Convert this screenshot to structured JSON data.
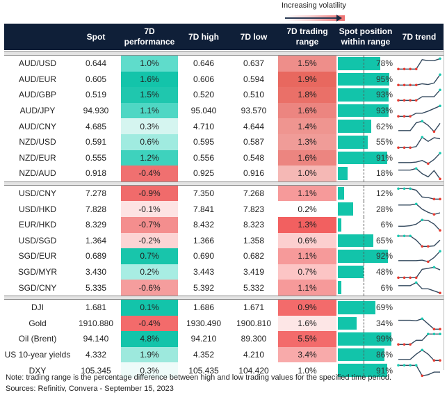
{
  "legend": {
    "label": "Increasing volatility"
  },
  "columns": [
    "",
    "Spot",
    "7D performance",
    "7D high",
    "7D low",
    "7D trading range",
    "Spot position within range",
    "7D trend"
  ],
  "chart_data": {
    "type": "table",
    "groups": [
      {
        "rows": [
          {
            "name": "AUD/USD",
            "spot": "0.644",
            "perf": "1.0%",
            "perf_color": "#5fdccb",
            "high": "0.646",
            "low": "0.637",
            "range": "1.5%",
            "range_color": "#ee8e8a",
            "position": 78,
            "trend": [
              0,
              0,
              0,
              0,
              0.9,
              0.8,
              0.8,
              1
            ]
          },
          {
            "name": "AUD/EUR",
            "spot": "0.605",
            "perf": "1.6%",
            "perf_color": "#13c4aa",
            "high": "0.606",
            "low": "0.594",
            "range": "1.9%",
            "range_color": "#e8685f",
            "position": 95,
            "trend": [
              0,
              0,
              0,
              0,
              0.12,
              0.05,
              0.2,
              1
            ]
          },
          {
            "name": "AUD/GBP",
            "spot": "0.519",
            "perf": "1.5%",
            "perf_color": "#1fc7ae",
            "high": "0.520",
            "low": "0.510",
            "range": "1.8%",
            "range_color": "#ea7068",
            "position": 93,
            "trend": [
              0,
              0,
              0,
              0,
              0.35,
              0.35,
              0.35,
              1
            ]
          },
          {
            "name": "AUD/JPY",
            "spot": "94.930",
            "perf": "1.1%",
            "perf_color": "#4fd7c4",
            "high": "95.040",
            "low": "93.570",
            "range": "1.6%",
            "range_color": "#ec8580",
            "position": 93,
            "trend": [
              0,
              0,
              0,
              0.3,
              0.3,
              0.5,
              0.75,
              1
            ]
          },
          {
            "name": "AUD/CNY",
            "spot": "4.685",
            "perf": "0.3%",
            "perf_color": "#d5f5f0",
            "high": "4.710",
            "low": "4.644",
            "range": "1.4%",
            "range_color": "#ef9590",
            "position": 62,
            "trend": [
              0.1,
              0.1,
              0.1,
              0.85,
              1,
              0.6,
              0,
              0.8
            ]
          },
          {
            "name": "NZD/USD",
            "spot": "0.591",
            "perf": "0.6%",
            "perf_color": "#a0ebe0",
            "high": "0.595",
            "low": "0.587",
            "range": "1.3%",
            "range_color": "#f09c98",
            "position": 55,
            "trend": [
              0,
              0,
              0,
              0.1,
              1,
              0.6,
              0.95,
              0.85
            ]
          },
          {
            "name": "NZD/EUR",
            "spot": "0.555",
            "perf": "1.2%",
            "perf_color": "#3ed2bd",
            "high": "0.556",
            "low": "0.548",
            "range": "1.6%",
            "range_color": "#ec8580",
            "position": 91,
            "trend": [
              0.1,
              0.1,
              0.1,
              0.15,
              0.3,
              0,
              0.4,
              1
            ]
          },
          {
            "name": "NZD/AUD",
            "spot": "0.918",
            "perf": "-0.4%",
            "perf_color": "#f07070",
            "high": "0.925",
            "low": "0.916",
            "range": "1.0%",
            "range_color": "#f5b8b5",
            "position": 18,
            "trend": [
              0.85,
              0.85,
              0.85,
              1,
              0.5,
              0.2,
              0.8,
              0
            ]
          }
        ]
      },
      {
        "rows": [
          {
            "name": "USD/CNY",
            "spot": "7.278",
            "perf": "-0.9%",
            "perf_color": "#f06b6b",
            "high": "7.350",
            "low": "7.268",
            "range": "1.1%",
            "range_color": "#f69a9a",
            "position": 12,
            "trend": [
              1,
              1,
              1,
              0.85,
              0.2,
              0.15,
              0,
              0
            ]
          },
          {
            "name": "USD/HKD",
            "spot": "7.828",
            "perf": "-0.1%",
            "perf_color": "#fde3e3",
            "high": "7.841",
            "low": "7.823",
            "range": "0.2%",
            "range_color": "#ffffff",
            "position": 28,
            "trend": [
              0.9,
              0.9,
              0.9,
              1,
              0.5,
              0.2,
              0,
              0.15
            ]
          },
          {
            "name": "EUR/HKD",
            "spot": "8.329",
            "perf": "-0.7%",
            "perf_color": "#f48e8e",
            "high": "8.432",
            "low": "8.323",
            "range": "1.3%",
            "range_color": "#f26060",
            "position": 6,
            "trend": [
              0.4,
              0.4,
              0.45,
              0.6,
              1,
              0.95,
              0.6,
              0
            ]
          },
          {
            "name": "USD/SGD",
            "spot": "1.364",
            "perf": "-0.2%",
            "perf_color": "#fcd4d4",
            "high": "1.366",
            "low": "1.358",
            "range": "0.6%",
            "range_color": "#fccfcf",
            "position": 65,
            "trend": [
              1,
              1,
              1,
              0.6,
              0,
              0,
              0.05,
              0.6
            ]
          },
          {
            "name": "SGD/EUR",
            "spot": "0.689",
            "perf": "0.7%",
            "perf_color": "#18c5ab",
            "high": "0.690",
            "low": "0.682",
            "range": "1.1%",
            "range_color": "#f69a9a",
            "position": 92,
            "trend": [
              0.1,
              0.1,
              0.1,
              0.1,
              0.15,
              0,
              0.4,
              1
            ]
          },
          {
            "name": "SGD/MYR",
            "spot": "3.430",
            "perf": "0.2%",
            "perf_color": "#a8ede3",
            "high": "3.443",
            "low": "3.419",
            "range": "0.7%",
            "range_color": "#fcc5c5",
            "position": 48,
            "trend": [
              0,
              0,
              0,
              0,
              0.8,
              0.9,
              1,
              0.75
            ]
          },
          {
            "name": "SGD/CNY",
            "spot": "5.335",
            "perf": "-0.6%",
            "perf_color": "#f59d9d",
            "high": "5.392",
            "low": "5.332",
            "range": "1.1%",
            "range_color": "#f69a9a",
            "position": 6,
            "trend": [
              0.7,
              0.7,
              0.7,
              1,
              0.4,
              0.4,
              0.2,
              0
            ]
          }
        ]
      },
      {
        "rows": [
          {
            "name": "DJI",
            "spot": "1.681",
            "perf": "0.1%",
            "perf_color": "#13c4aa",
            "high": "1.686",
            "low": "1.671",
            "range": "0.9%",
            "range_color": "#f36b6b",
            "position": 69,
            "trend": []
          },
          {
            "name": "Gold",
            "spot": "1910.880",
            "perf": "-0.4%",
            "perf_color": "#f36b6b",
            "high": "1930.490",
            "low": "1900.810",
            "range": "1.6%",
            "range_color": "#fde6e6",
            "position": 34,
            "trend": [
              0.85,
              0.85,
              0.85,
              0.8,
              1,
              0.5,
              0,
              0
            ]
          },
          {
            "name": "Oil (Brent)",
            "spot": "94.140",
            "perf": "4.8%",
            "perf_color": "#13c4aa",
            "high": "94.210",
            "low": "89.300",
            "range": "5.5%",
            "range_color": "#f36b6b",
            "position": 99,
            "trend": [
              0,
              0,
              0,
              0.4,
              0.4,
              1,
              1,
              1
            ]
          },
          {
            "name": "US 10-year yields",
            "spot": "4.332",
            "perf": "1.9%",
            "perf_color": "#9de9dd",
            "high": "4.352",
            "low": "4.210",
            "range": "3.4%",
            "range_color": "#f8aaaa",
            "position": 86,
            "trend": [
              0.1,
              0.1,
              0.1,
              0.6,
              1,
              0.6,
              0,
              0
            ]
          },
          {
            "name": "DXY",
            "spot": "105.345",
            "perf": "0.3%",
            "perf_color": "#eefbf9",
            "high": "105.435",
            "low": "104.420",
            "range": "1.0%",
            "range_color": "#ffffff",
            "position": 91,
            "trend": [
              1,
              1,
              1,
              1,
              0,
              0.1,
              0.35,
              0.35
            ]
          }
        ]
      }
    ]
  },
  "colors": {
    "header_bg": "#0f1f38",
    "bar": "#12c4aa",
    "trend_line": "#34495e",
    "max_marker": "#19c9b0",
    "min_marker": "#e8382e"
  },
  "note": "Note: trading range is the percentage difference between high and low trading values for the specified time period.",
  "sources": "Sources: Refinitiv, Convera - September 15, 2023"
}
